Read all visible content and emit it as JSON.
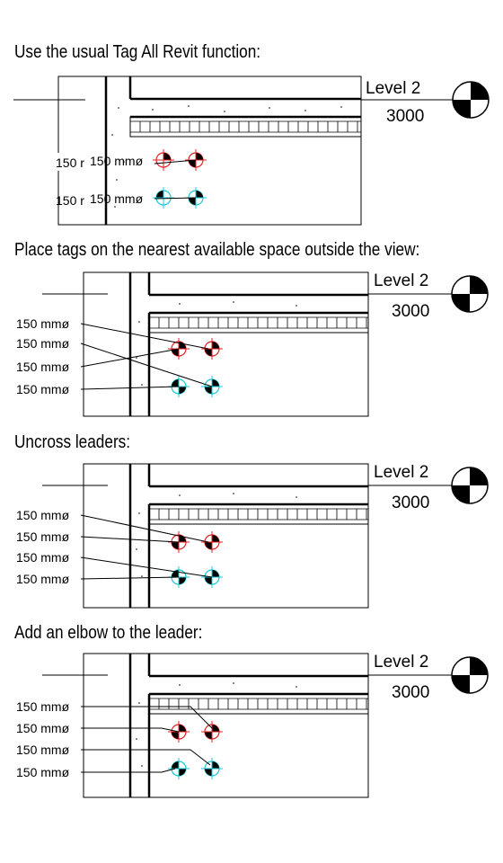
{
  "steps": [
    {
      "heading": "Use the usual Tag All Revit function:",
      "level_name": "Level 2",
      "level_value": "3000",
      "tags": [
        "150 mmø",
        "150 mmø"
      ],
      "truncated_tags": [
        "150 r",
        "150 r"
      ]
    },
    {
      "heading": "Place tags on the nearest available space outside the view:",
      "level_name": "Level 2",
      "level_value": "3000",
      "tags": [
        "150 mmø",
        "150 mmø",
        "150 mmø",
        "150 mmø"
      ]
    },
    {
      "heading": "Uncross leaders:",
      "level_name": "Level 2",
      "level_value": "3000",
      "tags": [
        "150 mmø",
        "150 mmø",
        "150 mmø",
        "150 mmø"
      ]
    },
    {
      "heading": "Add an elbow to the leader:",
      "level_name": "Level 2",
      "level_value": "3000",
      "tags": [
        "150 mmø",
        "150 mmø",
        "150 mmø",
        "150 mmø"
      ]
    }
  ],
  "colors": {
    "pipe_upper": "#e52020",
    "pipe_lower": "#18c8d8",
    "line": "#000000"
  },
  "icons": {
    "level_marker": "level-head-icon",
    "pipe": "pipe-section-icon"
  }
}
